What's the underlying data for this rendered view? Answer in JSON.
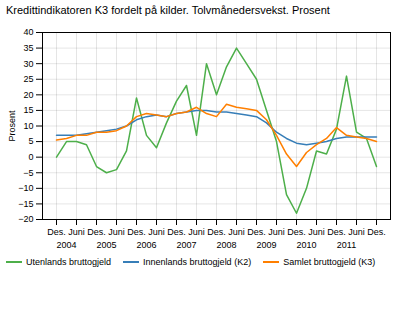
{
  "chart_data": {
    "type": "line",
    "title": "Kredittindikatoren K3 fordelt på kilder. Tolvmånedersvekst. Prosent",
    "ylabel": "Prosent",
    "categories": [
      "Des.",
      null,
      "Juni",
      null,
      "Des.",
      null,
      "Juni",
      null,
      "Des.",
      null,
      "Juni",
      null,
      "Des.",
      null,
      "Juni",
      null,
      "Des.",
      null,
      "Juni",
      null,
      "Des.",
      null,
      "Juni",
      null,
      "Des.",
      null,
      "Juni",
      null,
      "Des.",
      null,
      "Juni",
      null,
      "Des."
    ],
    "annotations": [
      {
        "text": "2004",
        "x": 1
      },
      {
        "text": "2005",
        "x": 5
      },
      {
        "text": "2006",
        "x": 9
      },
      {
        "text": "2007",
        "x": 13
      },
      {
        "text": "2008",
        "x": 17
      },
      {
        "text": "2009",
        "x": 21
      },
      {
        "text": "2010",
        "x": 25
      },
      {
        "text": "2011",
        "x": 29
      }
    ],
    "series": [
      {
        "name": "Utenlands bruttogjeld",
        "color": "#4daf4a",
        "values": [
          0.0,
          5.0,
          5.0,
          4.0,
          -3.0,
          -5.0,
          -4.0,
          2.0,
          19.0,
          7.0,
          3.0,
          11.0,
          18.0,
          23.0,
          7.0,
          30.0,
          20.0,
          29.0,
          35.0,
          30.0,
          25.0,
          15.0,
          5.0,
          -12.0,
          -18.0,
          -10.0,
          2.0,
          1.0,
          9.0,
          26.0,
          8.0,
          6.0,
          -3.0
        ]
      },
      {
        "name": "Innenlands bruttogjeld (K2)",
        "color": "#377eb8",
        "values": [
          7.0,
          7.0,
          7.0,
          7.5,
          8.0,
          8.5,
          9.0,
          10.0,
          12.0,
          13.0,
          13.5,
          13.0,
          14.0,
          14.5,
          15.0,
          15.0,
          14.5,
          14.5,
          14.0,
          13.5,
          13.0,
          11.0,
          8.0,
          6.0,
          4.5,
          4.0,
          4.5,
          5.0,
          6.0,
          6.5,
          6.5,
          6.5,
          6.5
        ]
      },
      {
        "name": "Samlet bruttogjeld (K3)",
        "color": "#ff7f00",
        "values": [
          5.5,
          6.0,
          7.0,
          7.0,
          8.0,
          8.0,
          8.5,
          10.0,
          13.0,
          14.0,
          13.5,
          13.0,
          14.0,
          14.5,
          16.0,
          14.0,
          13.0,
          17.0,
          16.0,
          15.5,
          15.0,
          12.0,
          7.0,
          1.0,
          -3.0,
          1.5,
          4.0,
          6.0,
          9.5,
          7.0,
          6.5,
          6.0,
          5.0
        ]
      }
    ],
    "ylim": [
      -20,
      40
    ],
    "yticks": [
      -20,
      -15,
      -10,
      -5,
      0,
      5,
      10,
      15,
      20,
      25,
      30,
      35,
      40
    ],
    "grid": true,
    "legend": "lower left"
  }
}
